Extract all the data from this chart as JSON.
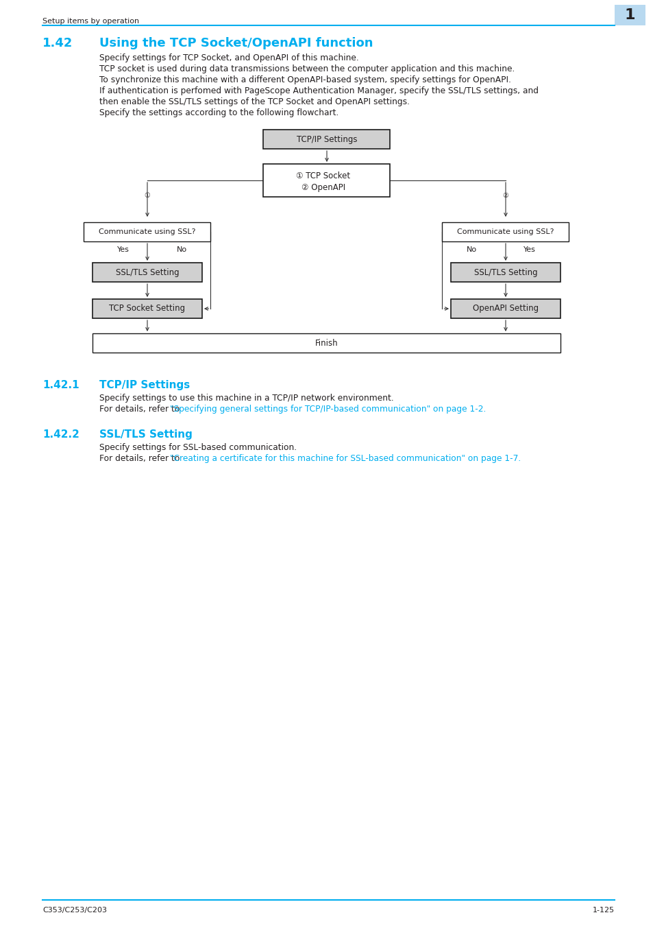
{
  "page_header_text": "Setup items by operation",
  "page_number_bg": "#b8d9f0",
  "page_number_text": "1",
  "section_number": "1.42",
  "section_title": "Using the TCP Socket/OpenAPI function",
  "cyan_color": "#00aeef",
  "body_text_color": "#231f20",
  "body_paragraphs": [
    "Specify settings for TCP Socket, and OpenAPI of this machine.",
    "TCP socket is used during data transmissions between the computer application and this machine.",
    "To synchronize this machine with a different OpenAPI-based system, specify settings for OpenAPI.",
    "If authentication is perfomed with PageScope Authentication Manager, specify the SSL/TLS settings, and",
    "then enable the SSL/TLS settings of the TCP Socket and OpenAPI settings.",
    "Specify the settings according to the following flowchart."
  ],
  "sub_section_1_number": "1.42.1",
  "sub_section_1_title": "TCP/IP Settings",
  "sub_section_1_body": "Specify settings to use this machine in a TCP/IP network environment.",
  "sub_section_1_link_prefix": "For details, refer to ",
  "sub_section_1_link": "\"Specifying general settings for TCP/IP-based communication\" on page 1-2.",
  "sub_section_2_number": "1.42.2",
  "sub_section_2_title": "SSL/TLS Setting",
  "sub_section_2_body": "Specify settings for SSL-based communication.",
  "sub_section_2_link_prefix": "For details, refer to ",
  "sub_section_2_link": "\"Creating a certificate for this machine for SSL-based communication\" on page 1-7.",
  "footer_left": "C353/C253/C203",
  "footer_right": "1-125"
}
